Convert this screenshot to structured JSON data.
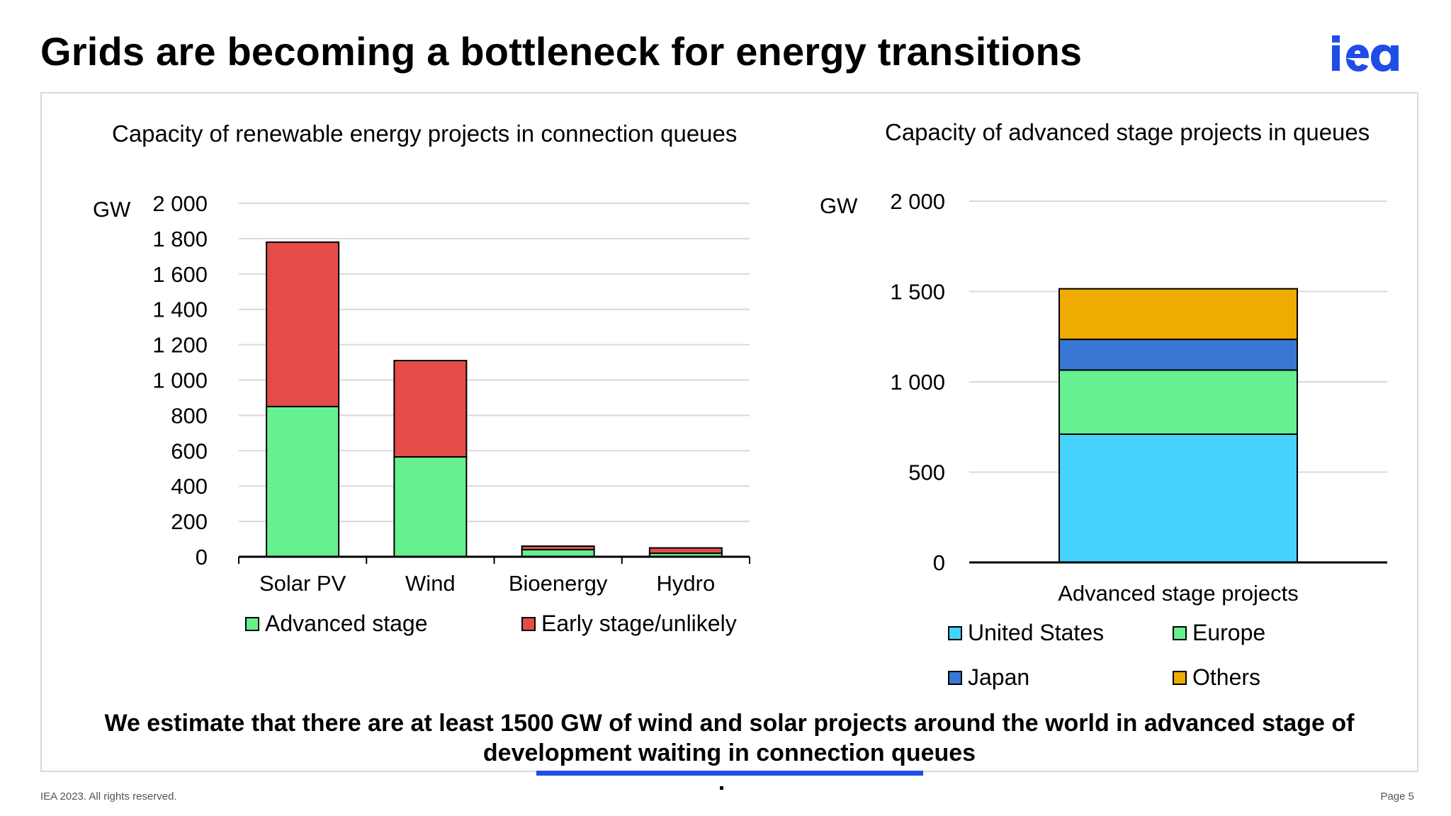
{
  "slide": {
    "title": "Grids are becoming a bottleneck for energy transitions",
    "conclusion": "We estimate that there are at least 1500 GW of wind and solar projects around the world in advanced stage of development waiting in connection queues",
    "footer_left": "IEA 2023. All rights reserved.",
    "footer_right": "Page 5",
    "logo_text": "iea",
    "brand_color": "#1f4ee6"
  },
  "chart_data": [
    {
      "type": "bar",
      "stacked": true,
      "title": "Capacity of renewable energy projects in connection queues",
      "ylabel": "GW",
      "ylim": [
        0,
        2000
      ],
      "yticks": [
        "0",
        "200",
        "400",
        "600",
        "800",
        "1 000",
        "1 200",
        "1 400",
        "1 600",
        "1 800",
        "2 000"
      ],
      "categories": [
        "Solar PV",
        "Wind",
        "Bioenergy",
        "Hydro"
      ],
      "series": [
        {
          "name": "Advanced stage",
          "color": "#66f08f",
          "values": [
            850,
            565,
            40,
            20
          ]
        },
        {
          "name": "Early stage/unlikely",
          "color": "#e44c4a",
          "values": [
            930,
            545,
            20,
            30
          ]
        }
      ],
      "grid": true,
      "legend": "bottom"
    },
    {
      "type": "bar",
      "stacked": true,
      "title": "Capacity of advanced stage projects in queues",
      "ylabel": "GW",
      "ylim": [
        0,
        2000
      ],
      "yticks": [
        "0",
        "500",
        "1 000",
        "1 500",
        "2 000"
      ],
      "categories": [
        "Advanced stage projects"
      ],
      "series": [
        {
          "name": "United States",
          "color": "#45d2fb",
          "values": [
            710
          ]
        },
        {
          "name": "Europe",
          "color": "#66f08f",
          "values": [
            355
          ]
        },
        {
          "name": "Japan",
          "color": "#3a77d4",
          "values": [
            170
          ]
        },
        {
          "name": "Others",
          "color": "#f0ab00",
          "values": [
            280
          ]
        }
      ],
      "grid": true,
      "legend": "bottom"
    }
  ]
}
